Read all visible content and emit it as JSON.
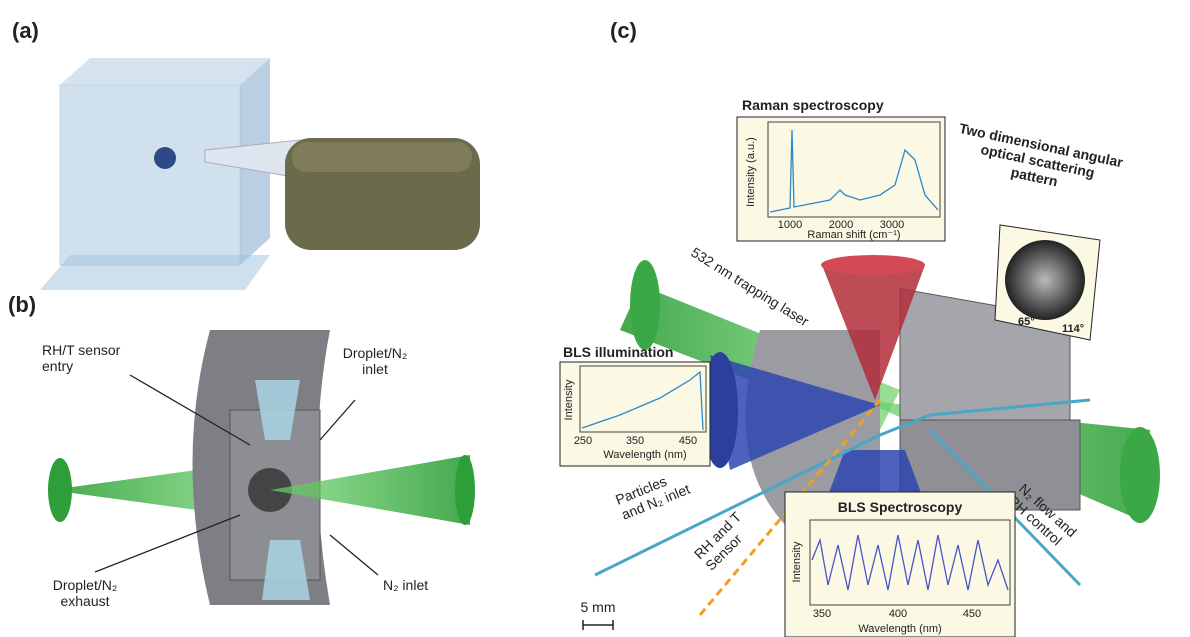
{
  "panels": {
    "a": {
      "label": "(a)"
    },
    "b": {
      "label": "(b)",
      "callouts": [
        {
          "lines": [
            "RH/T sensor",
            "entry"
          ]
        },
        {
          "lines": [
            "Droplet/N₂",
            "inlet"
          ]
        },
        {
          "lines": [
            "N₂ inlet"
          ]
        },
        {
          "lines": [
            "Droplet/N₂",
            "exhaust"
          ]
        }
      ]
    },
    "c": {
      "label": "(c)",
      "raman": {
        "title": "Raman spectroscopy",
        "ylabel": "Intensity (a.u.)",
        "xlabel": "Raman shift (cm⁻¹)",
        "xticks": [
          "1000",
          "2000",
          "3000"
        ]
      },
      "scattering": {
        "lines": [
          "Two dimensional angular",
          "optical scattering",
          "pattern"
        ],
        "angles": [
          "65°",
          "114°"
        ]
      },
      "laser": "532 nm trapping laser",
      "bls_illumination": {
        "title": "BLS illumination",
        "ylabel": "Intensity",
        "xlabel": "Wavelength (nm)",
        "xticks": [
          "250",
          "350",
          "450"
        ]
      },
      "particles": {
        "lines": [
          "Particles",
          "and N₂ inlet"
        ]
      },
      "sensor": {
        "lines": [
          "RH and T",
          "Sensor"
        ]
      },
      "bls_spectroscopy": {
        "title": "BLS Spectroscopy",
        "ylabel": "Intensity",
        "xlabel": "Wavelength (nm)",
        "xticks": [
          "350",
          "400",
          "450"
        ]
      },
      "n2_flow": {
        "lines": [
          "N₂ flow and",
          "RH control"
        ]
      },
      "scale": "5 mm"
    }
  }
}
